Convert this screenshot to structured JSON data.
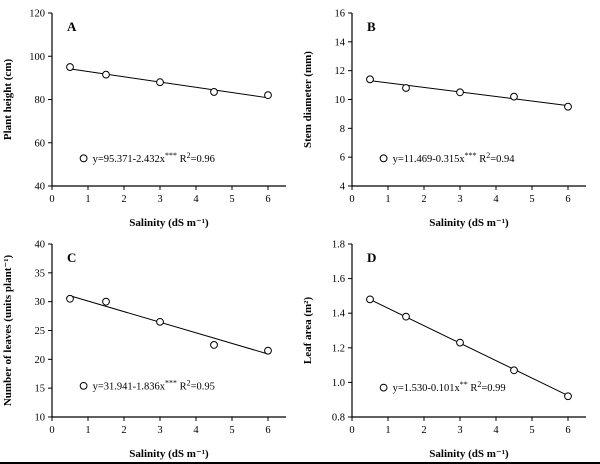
{
  "style": {
    "background": "#ffffff",
    "axis_color": "#000000",
    "marker_fill": "#ffffff",
    "marker_stroke": "#000000",
    "line_color": "#000000"
  },
  "chart_data": [
    {
      "type": "scatter",
      "panel_label": "A",
      "xlabel": "Salinity (dS m⁻¹)",
      "ylabel": "Plant height (cm)",
      "x": [
        0.5,
        1.5,
        3,
        4.5,
        6
      ],
      "y": [
        95,
        91.5,
        88,
        83.5,
        82
      ],
      "fit": {
        "intercept": 95.371,
        "slope": -2.432,
        "x_start": 0.5,
        "x_end": 6
      },
      "xlim": [
        0,
        6.5
      ],
      "ylim": [
        40,
        120
      ],
      "xticks": [
        0,
        1,
        2,
        3,
        4,
        5,
        6
      ],
      "yticks": [
        40,
        60,
        80,
        100,
        120
      ],
      "ytick_labels": [
        "40",
        "60",
        "80",
        "100",
        "120"
      ],
      "legend_pos": {
        "fx": 0.135,
        "fy": 0.16
      },
      "equation": [
        {
          "t": "y=95.371-2.432x"
        },
        {
          "t": "***",
          "sup": true
        },
        {
          "t": " R"
        },
        {
          "t": "2",
          "sup": true
        },
        {
          "t": "=0.96"
        }
      ]
    },
    {
      "type": "scatter",
      "panel_label": "B",
      "xlabel": "Salinity (dS m⁻¹)",
      "ylabel": "Stem diameter (mm)",
      "x": [
        0.5,
        1.5,
        3,
        4.5,
        6
      ],
      "y": [
        11.4,
        10.8,
        10.5,
        10.2,
        9.5
      ],
      "fit": {
        "intercept": 11.469,
        "slope": -0.315,
        "x_start": 0.5,
        "x_end": 6
      },
      "xlim": [
        0,
        6.5
      ],
      "ylim": [
        4,
        16
      ],
      "xticks": [
        0,
        1,
        2,
        3,
        4,
        5,
        6
      ],
      "yticks": [
        4,
        6,
        8,
        10,
        12,
        14,
        16
      ],
      "ytick_labels": [
        "4",
        "6",
        "8",
        "10",
        "12",
        "14",
        "16"
      ],
      "legend_pos": {
        "fx": 0.135,
        "fy": 0.16
      },
      "equation": [
        {
          "t": "y=11.469-0.315x"
        },
        {
          "t": "***",
          "sup": true
        },
        {
          "t": " R"
        },
        {
          "t": "2",
          "sup": true
        },
        {
          "t": "=0.94"
        }
      ]
    },
    {
      "type": "scatter",
      "panel_label": "C",
      "xlabel": "Salinity (dS m⁻¹)",
      "ylabel": "Number of leaves (units plant⁻¹)",
      "x": [
        0.5,
        1.5,
        3,
        4.5,
        6
      ],
      "y": [
        30.5,
        30,
        26.5,
        22.5,
        21.5
      ],
      "fit": {
        "intercept": 31.941,
        "slope": -1.836,
        "x_start": 0.5,
        "x_end": 6
      },
      "xlim": [
        0,
        6.5
      ],
      "ylim": [
        10,
        40
      ],
      "xticks": [
        0,
        1,
        2,
        3,
        4,
        5,
        6
      ],
      "yticks": [
        10,
        15,
        20,
        25,
        30,
        35,
        40
      ],
      "ytick_labels": [
        "10",
        "15",
        "20",
        "25",
        "30",
        "35",
        "40"
      ],
      "legend_pos": {
        "fx": 0.135,
        "fy": 0.18
      },
      "equation": [
        {
          "t": "y=31.941-1.836x"
        },
        {
          "t": "***",
          "sup": true
        },
        {
          "t": " R"
        },
        {
          "t": "2",
          "sup": true
        },
        {
          "t": "=0.95"
        }
      ]
    },
    {
      "type": "scatter",
      "panel_label": "D",
      "xlabel": "Salinity (dS m⁻¹)",
      "ylabel": "Leaf area (m²)",
      "x": [
        0.5,
        1.5,
        3,
        4.5,
        6
      ],
      "y": [
        1.48,
        1.38,
        1.23,
        1.07,
        0.92
      ],
      "fit": {
        "intercept": 1.53,
        "slope": -0.101,
        "x_start": 0.5,
        "x_end": 6
      },
      "xlim": [
        0,
        6.5
      ],
      "ylim": [
        0.8,
        1.8
      ],
      "xticks": [
        0,
        1,
        2,
        3,
        4,
        5,
        6
      ],
      "yticks": [
        0.8,
        1.0,
        1.2,
        1.4,
        1.6,
        1.8
      ],
      "ytick_labels": [
        "0.8",
        "1.0",
        "1.2",
        "1.4",
        "1.6",
        "1.8"
      ],
      "legend_pos": {
        "fx": 0.135,
        "fy": 0.17
      },
      "equation": [
        {
          "t": "y=1.530-0.101x"
        },
        {
          "t": "**",
          "sup": true
        },
        {
          "t": " R"
        },
        {
          "t": "2",
          "sup": true
        },
        {
          "t": "=0.99"
        }
      ]
    }
  ]
}
